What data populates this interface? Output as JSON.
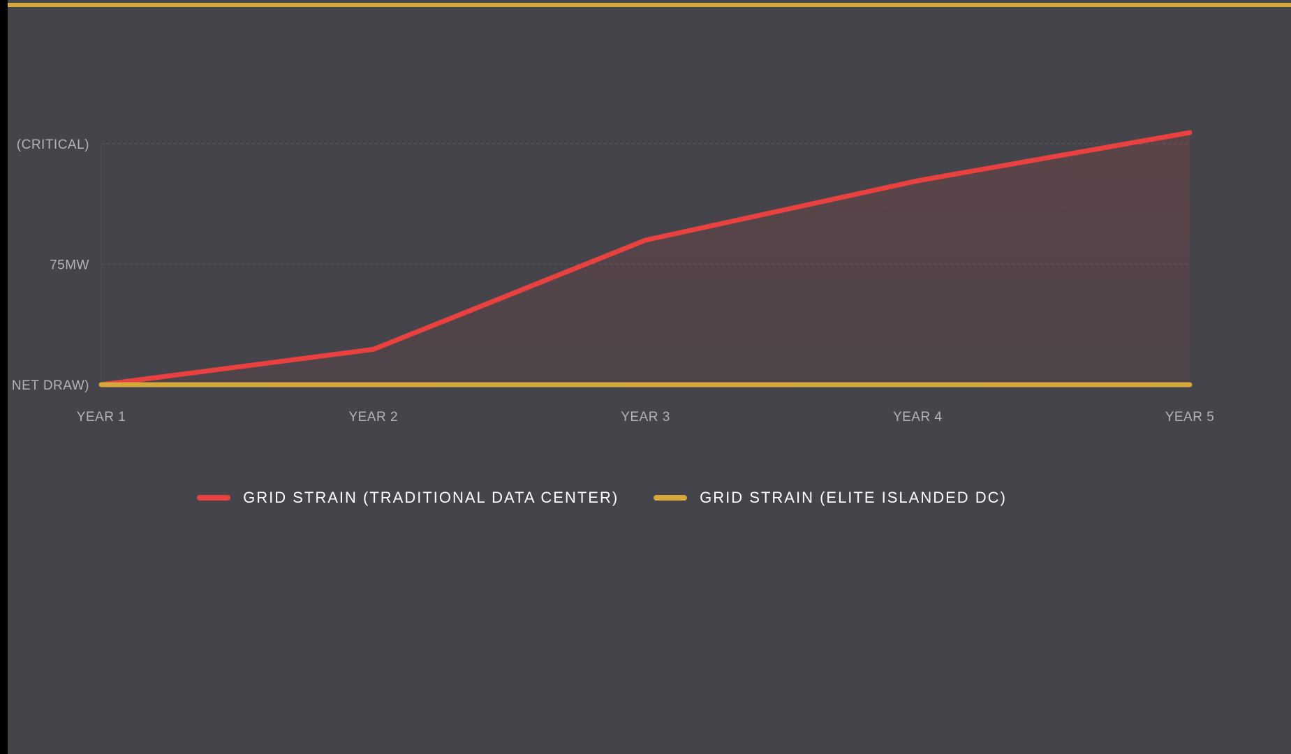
{
  "colors": {
    "background": "#45444a",
    "accent": "#d4a83a",
    "traditional": "#e8413f",
    "islanded": "#d4a83a"
  },
  "chart_data": {
    "type": "line",
    "categories": [
      "YEAR 1",
      "YEAR 2",
      "YEAR 3",
      "YEAR 4",
      "YEAR 5"
    ],
    "y_tick_labels": [
      "NET DRAW)",
      "75MW",
      "(CRITICAL)"
    ],
    "y_tick_values": [
      0,
      75,
      150
    ],
    "ylim": [
      0,
      150
    ],
    "grid": true,
    "legend_position": "bottom",
    "series": [
      {
        "name": "GRID STRAIN (TRADITIONAL DATA CENTER)",
        "color": "#e8413f",
        "fill": true,
        "values": [
          0,
          22,
          90,
          127,
          157
        ]
      },
      {
        "name": "GRID STRAIN (ELITE ISLANDED DC)",
        "color": "#d4a83a",
        "fill": false,
        "values": [
          0,
          0,
          0,
          0,
          0
        ]
      }
    ]
  }
}
